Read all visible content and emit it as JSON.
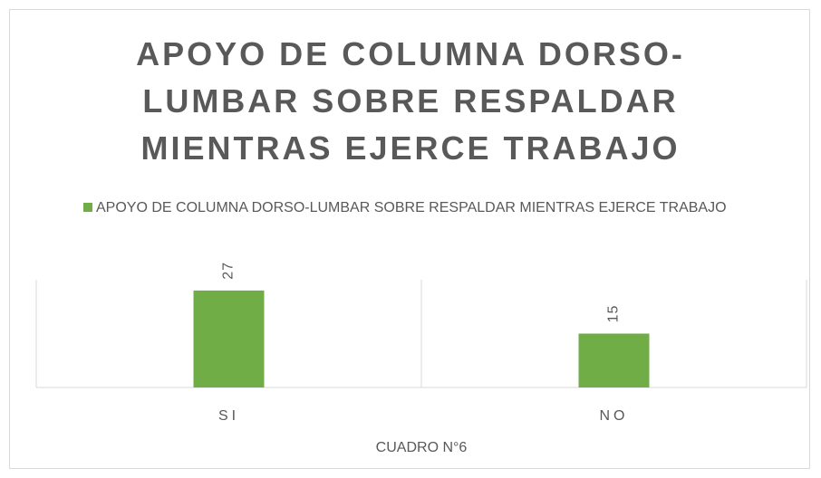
{
  "chart_data": {
    "type": "bar",
    "title": "APOYO DE COLUMNA DORSO-LUMBAR SOBRE RESPALDAR MIENTRAS EJERCE TRABAJO",
    "x_label": "CUADRO N°6",
    "categories": [
      "SI",
      "NO"
    ],
    "series": [
      {
        "name": "APOYO DE COLUMNA DORSO-LUMBAR SOBRE RESPALDAR MIENTRAS EJERCE TRABAJO",
        "color": "#70ad47",
        "values": [
          27,
          15
        ]
      }
    ],
    "ylim": [
      0,
      30
    ],
    "legend": "top"
  }
}
